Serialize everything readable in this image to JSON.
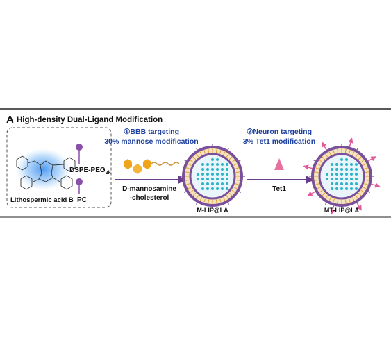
{
  "header": {
    "label": "A",
    "title": "High-density Dual-Ligand Modification"
  },
  "components": {
    "drug": "Lithospermic acid B",
    "lipid1": {
      "base": "DSPE-PEG",
      "subscript": "2k"
    },
    "lipid2": "PC"
  },
  "step1": {
    "heading": "①BBB targeting",
    "detail": "30% mannose modification",
    "reagent_line1": "D-mannosamine",
    "reagent_line2": "-cholesterol",
    "product": "M-LIP@LA"
  },
  "step2": {
    "heading": "②Neuron targeting",
    "detail": "3% Tet1 modification",
    "reagent": "Tet1",
    "product": "MT-LIP@LA"
  }
}
